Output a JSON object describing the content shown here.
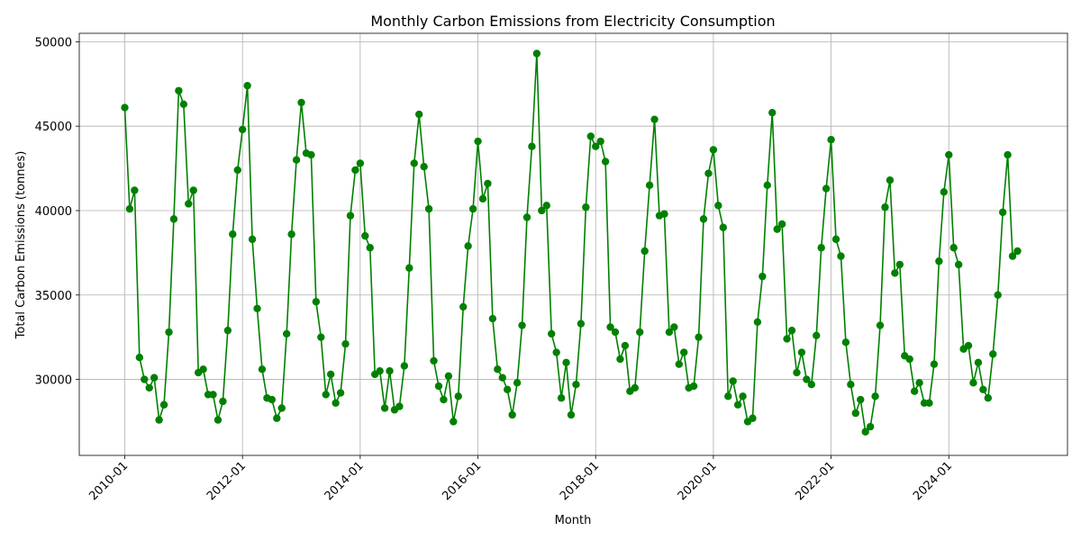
{
  "chart_data": {
    "type": "line",
    "title": "Monthly Carbon Emissions from Electricity Consumption",
    "xlabel": "Month",
    "ylabel": "Total Carbon Emissions (tonnes)",
    "x_start": "2010-01",
    "x_tick_labels": [
      "2010-01",
      "2012-01",
      "2014-01",
      "2016-01",
      "2018-01",
      "2020-01",
      "2022-01",
      "2024-01"
    ],
    "y_ticks": [
      30000,
      35000,
      40000,
      45000,
      50000
    ],
    "ylim": [
      25500,
      50500
    ],
    "grid": true,
    "color": "#008000",
    "marker": "circle",
    "values": [
      46100,
      40100,
      41200,
      31300,
      30000,
      29500,
      30100,
      27600,
      28500,
      32800,
      39500,
      47100,
      46300,
      40400,
      41200,
      30400,
      30600,
      29100,
      29100,
      27600,
      28700,
      32900,
      38600,
      42400,
      44800,
      47400,
      38300,
      34200,
      30600,
      28900,
      28800,
      27700,
      28300,
      32700,
      38600,
      43000,
      46400,
      43400,
      43300,
      34600,
      32500,
      29100,
      30300,
      28600,
      29200,
      32100,
      39700,
      42400,
      42800,
      38500,
      37800,
      30300,
      30500,
      28300,
      30500,
      28200,
      28400,
      30800,
      36600,
      42800,
      45700,
      42600,
      40100,
      31100,
      29600,
      28800,
      30200,
      27500,
      29000,
      34300,
      37900,
      40100,
      44100,
      40700,
      41600,
      33600,
      30600,
      30100,
      29400,
      27900,
      29800,
      33200,
      39600,
      43800,
      49300,
      40000,
      40300,
      32700,
      31600,
      28900,
      31000,
      27900,
      29700,
      33300,
      40200,
      44400,
      43800,
      44100,
      42900,
      33100,
      32800,
      31200,
      32000,
      29300,
      29500,
      32800,
      37600,
      41500,
      45400,
      39700,
      39800,
      32800,
      33100,
      30900,
      31600,
      29500,
      29600,
      32500,
      39500,
      42200,
      43600,
      40300,
      39000,
      29000,
      29900,
      28500,
      29000,
      27500,
      27700,
      33400,
      36100,
      41500,
      45800,
      38900,
      39200,
      32400,
      32900,
      30400,
      31600,
      30000,
      29700,
      32600,
      37800,
      41300,
      44200,
      38300,
      37300,
      32200,
      29700,
      28000,
      28800,
      26900,
      27200,
      29000,
      33200,
      40200,
      41800,
      36300,
      36800,
      31400,
      31200,
      29300,
      29800,
      28600,
      28600,
      30900,
      37000,
      41100,
      43300,
      37800,
      36800,
      31800,
      32000,
      29800,
      31000,
      29400,
      28900,
      31500,
      35000,
      39900,
      43300,
      37300,
      37600
    ]
  }
}
